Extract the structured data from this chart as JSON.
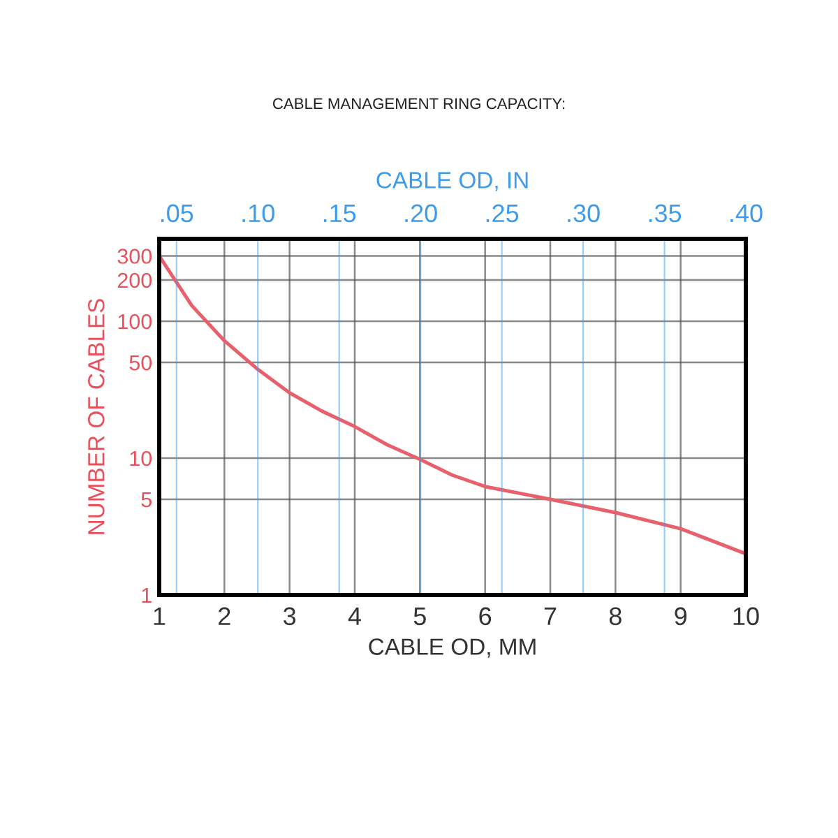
{
  "chart_data": {
    "type": "line",
    "title": "CABLE MANAGEMENT RING CAPACITY:",
    "xlabel": "CABLE OD, MM",
    "ylabel": "NUMBER OF CABLES",
    "x2label": "CABLE OD, IN",
    "log": "y",
    "grid": true,
    "marker": "none",
    "line_style": "solid",
    "xlim": [
      1,
      10
    ],
    "xticks": [
      1,
      2,
      3,
      4,
      5,
      6,
      7,
      8,
      9,
      10
    ],
    "ylim": [
      1,
      400
    ],
    "yticks": [
      1,
      5,
      10,
      50,
      100,
      200,
      300
    ],
    "x2lim": [
      0.03937,
      0.4
    ],
    "x2ticks": [
      {
        "value": 0.05,
        "label": ".05"
      },
      {
        "value": 0.1,
        "label": ".10"
      },
      {
        "value": 0.15,
        "label": ".15"
      },
      {
        "value": 0.2,
        "label": ".20"
      },
      {
        "value": 0.25,
        "label": ".25"
      },
      {
        "value": 0.3,
        "label": ".30"
      },
      {
        "value": 0.35,
        "label": ".35"
      },
      {
        "value": 0.4,
        "label": ".40"
      }
    ],
    "series": [
      {
        "color": "#e8606c",
        "x": [
          1,
          1.5,
          2,
          2.5,
          3,
          3.5,
          4,
          4.5,
          5,
          5.5,
          6,
          7,
          8,
          9,
          10
        ],
        "values": [
          300,
          130,
          72,
          45,
          30,
          22,
          17,
          12.5,
          9.8,
          7.5,
          6.2,
          5.0,
          4.0,
          3.05,
          2.0
        ]
      }
    ]
  }
}
